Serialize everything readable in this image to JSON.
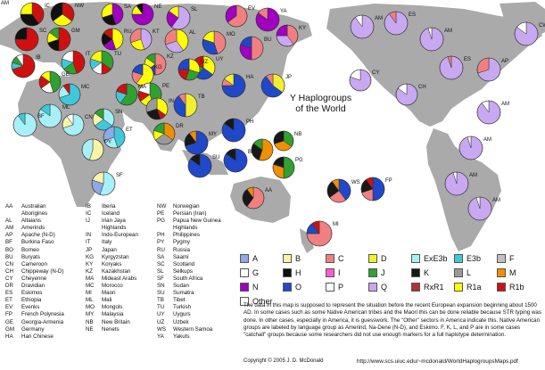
{
  "title": "Y Haplogroups\nof the World",
  "abbreviations": [
    [
      [
        "AA",
        "Australian"
      ],
      [
        "",
        "Aborigines"
      ],
      [
        "AL",
        "Altaians"
      ],
      [
        "AM",
        "Amerinds"
      ],
      [
        "AP",
        "Apache (N-D)"
      ],
      [
        "BF",
        "Burkina Faso"
      ],
      [
        "BO",
        "Borneo"
      ],
      [
        "BU",
        "Buryats"
      ],
      [
        "CN",
        "Cameroon"
      ],
      [
        "CH",
        "Chippeway (N-D)"
      ],
      [
        "CY",
        "Cheyenne"
      ],
      [
        "DR",
        "Dravidian"
      ],
      [
        "ES",
        "Eskimos"
      ],
      [
        "ET",
        "Ethiopia"
      ],
      [
        "EV",
        "Evenks"
      ],
      [
        "FP",
        "French Polynesia"
      ],
      [
        "GE",
        "Georgia-Armenia"
      ],
      [
        "GM",
        "Germany"
      ],
      [
        "HA",
        "Han Chinese"
      ]
    ],
    [
      [
        "IB",
        "Iberia"
      ],
      [
        "IC",
        "Iceland"
      ],
      [
        "IJ",
        "Irian Jaya"
      ],
      [
        "",
        "Highlands"
      ],
      [
        "IN",
        "Indo-European"
      ],
      [
        "IT",
        "Italy"
      ],
      [
        "JP",
        "Japan"
      ],
      [
        "KG",
        "Kyrgyzstan"
      ],
      [
        "KY",
        "Koryaks"
      ],
      [
        "KZ",
        "Kazakhstan"
      ],
      [
        "MA",
        "Mideast Arabs"
      ],
      [
        "MC",
        "Morocco"
      ],
      [
        "MI",
        "Maori"
      ],
      [
        "ML",
        "Mali"
      ],
      [
        "MO",
        "Mongols"
      ],
      [
        "MY",
        "Malaysia"
      ],
      [
        "NB",
        "New Britain"
      ],
      [
        "NE",
        "Nenets"
      ]
    ],
    [
      [
        "NW",
        "Norwegian"
      ],
      [
        "PE",
        "Persian (Iran)"
      ],
      [
        "PG",
        "Papua New Guinea"
      ],
      [
        "",
        "Highlands"
      ],
      [
        "PH",
        "Philippines"
      ],
      [
        "PY",
        "Pygmy"
      ],
      [
        "RU",
        "Russia"
      ],
      [
        "SA",
        "Saami"
      ],
      [
        "SC",
        "Scotland"
      ],
      [
        "SL",
        "Selkups"
      ],
      [
        "SF",
        "South Africa"
      ],
      [
        "SN",
        "Sudan"
      ],
      [
        "SU",
        "Sumatra"
      ],
      [
        "TB",
        "Tibet"
      ],
      [
        "TU",
        "Turkish"
      ],
      [
        "UY",
        "Uygurs"
      ],
      [
        "UZ",
        "Uzbek"
      ],
      [
        "WS",
        "Western Samoa"
      ],
      [
        "YA",
        "Yakuts"
      ]
    ]
  ],
  "legend": [
    {
      "label": "A",
      "color": "#8fa8e8"
    },
    {
      "label": "B",
      "color": "#f8f4a8"
    },
    {
      "label": "C",
      "color": "#f08080"
    },
    {
      "label": "D",
      "color": "#f0f030"
    },
    {
      "label": "ExE3b",
      "color": "#a8f0f8"
    },
    {
      "label": "E3b",
      "color": "#40c8d8"
    },
    {
      "label": "F",
      "color": "#c0c0c0"
    },
    {
      "label": "G",
      "color": "#ffffff"
    },
    {
      "label": "H",
      "color": "#101010"
    },
    {
      "label": "I",
      "color": "#ff5ad8"
    },
    {
      "label": "J",
      "color": "#30a030"
    },
    {
      "label": "K",
      "color": "#181818"
    },
    {
      "label": "L",
      "color": "#9a9a9a"
    },
    {
      "label": "M",
      "color": "#f09000"
    },
    {
      "label": "N",
      "color": "#a000c0"
    },
    {
      "label": "O",
      "color": "#2048c8"
    },
    {
      "label": "P",
      "color": "#ffffff"
    },
    {
      "label": "Q",
      "color": "#c8a8f0"
    },
    {
      "label": "RxR1",
      "color": "#b03040"
    },
    {
      "label": "R1a",
      "color": "#ffff00"
    },
    {
      "label": "R1b",
      "color": "#d01010"
    },
    {
      "label": "Other",
      "color": "#ffffff"
    }
  ],
  "description": "The data in this map is supposed to represent the situation before the recent European expansion beginning about 1500 AD. In some cases such as some Native American tribes and the Maori this can be done reliable because STR typing was done. In other cases, especially in America, it is guesswork. The \"Other\" sectors in America indicate this. Native American groups are labeled by language group as Amerind, Na-Dene (N-D), and Eskimo.  F, K, L, and P are in some cases \"catchall\" groups because some researchers did not use enough markers for a full haplotype determination.",
  "copyright": "Copyright © 2005 J. D. McDonald",
  "url": "http://www.scs.uiuc.edu/~mcdonald/WorldHaplogroupsMaps.pdf",
  "pies": [
    {
      "label": "IC",
      "slices": [
        [
          "#d01010",
          0.4
        ],
        [
          "#101010",
          0.35
        ],
        [
          "#ffff00",
          0.25
        ]
      ]
    },
    {
      "label": "NW",
      "slices": [
        [
          "#d01010",
          0.35
        ],
        [
          "#ffff00",
          0.3
        ],
        [
          "#101010",
          0.35
        ]
      ]
    },
    {
      "label": "SA",
      "slices": [
        [
          "#a000c0",
          0.45
        ],
        [
          "#101010",
          0.25
        ],
        [
          "#ffff00",
          0.3
        ]
      ]
    },
    {
      "label": "SC",
      "slices": [
        [
          "#d01010",
          0.75
        ],
        [
          "#101010",
          0.25
        ]
      ]
    },
    {
      "label": "GM",
      "slices": [
        [
          "#d01010",
          0.5
        ],
        [
          "#101010",
          0.2
        ],
        [
          "#ffff00",
          0.15
        ],
        [
          "#30a030",
          0.15
        ]
      ]
    },
    {
      "label": "IB",
      "slices": [
        [
          "#d01010",
          0.7
        ],
        [
          "#40c8d8",
          0.1
        ],
        [
          "#30a030",
          0.1
        ],
        [
          "#ffffff",
          0.1
        ]
      ]
    },
    {
      "label": "IT",
      "slices": [
        [
          "#d01010",
          0.45
        ],
        [
          "#30a030",
          0.2
        ],
        [
          "#40c8d8",
          0.15
        ],
        [
          "#ffffff",
          0.2
        ]
      ]
    },
    {
      "label": "TU",
      "slices": [
        [
          "#30a030",
          0.35
        ],
        [
          "#d01010",
          0.15
        ],
        [
          "#ffffff",
          0.15
        ],
        [
          "#40c8d8",
          0.15
        ],
        [
          "#ffff00",
          0.2
        ]
      ]
    },
    {
      "label": "RU",
      "slices": [
        [
          "#ffff00",
          0.45
        ],
        [
          "#a000c0",
          0.2
        ],
        [
          "#101010",
          0.2
        ],
        [
          "#d01010",
          0.15
        ]
      ]
    },
    {
      "label": "NE",
      "slices": [
        [
          "#a000c0",
          0.75
        ],
        [
          "#ffff00",
          0.15
        ],
        [
          "#101010",
          0.1
        ]
      ]
    },
    {
      "label": "SL",
      "slices": [
        [
          "#c8a8f0",
          0.6
        ],
        [
          "#a000c0",
          0.25
        ],
        [
          "#ffff00",
          0.15
        ]
      ]
    },
    {
      "label": "KT",
      "slices": [
        [
          "#c8a8f0",
          0.45
        ],
        [
          "#ffff00",
          0.25
        ],
        [
          "#f08080",
          0.3
        ]
      ]
    },
    {
      "label": "AL",
      "slices": [
        [
          "#ffff00",
          0.4
        ],
        [
          "#c8a8f0",
          0.3
        ],
        [
          "#f08080",
          0.3
        ]
      ]
    },
    {
      "label": "EV",
      "slices": [
        [
          "#f08080",
          0.65
        ],
        [
          "#a000c0",
          0.35
        ]
      ]
    },
    {
      "label": "YA",
      "slices": [
        [
          "#a000c0",
          0.85
        ],
        [
          "#f08080",
          0.15
        ]
      ]
    },
    {
      "label": "KY",
      "slices": [
        [
          "#f08080",
          0.4
        ],
        [
          "#c8a8f0",
          0.35
        ],
        [
          "#a000c0",
          0.25
        ]
      ]
    },
    {
      "label": "BU",
      "slices": [
        [
          "#f08080",
          0.5
        ],
        [
          "#a000c0",
          0.3
        ],
        [
          "#2048c8",
          0.2
        ]
      ]
    },
    {
      "label": "MO",
      "slices": [
        [
          "#f08080",
          0.45
        ],
        [
          "#2048c8",
          0.35
        ],
        [
          "#ffff00",
          0.2
        ]
      ]
    },
    {
      "label": "KZ",
      "slices": [
        [
          "#f08080",
          0.5
        ],
        [
          "#2048c8",
          0.15
        ],
        [
          "#ffff00",
          0.2
        ],
        [
          "#30a030",
          0.15
        ]
      ]
    },
    {
      "label": "KG",
      "slices": [
        [
          "#ffff00",
          0.6
        ],
        [
          "#f08080",
          0.2
        ],
        [
          "#2048c8",
          0.2
        ]
      ]
    },
    {
      "label": "UY",
      "slices": [
        [
          "#ffff00",
          0.35
        ],
        [
          "#2048c8",
          0.25
        ],
        [
          "#30a030",
          0.2
        ],
        [
          "#d01010",
          0.2
        ]
      ]
    },
    {
      "label": "UZ",
      "slices": [
        [
          "#ffff00",
          0.3
        ],
        [
          "#30a030",
          0.25
        ],
        [
          "#d01010",
          0.2
        ],
        [
          "#2048c8",
          0.25
        ]
      ]
    },
    {
      "label": "GE",
      "slices": [
        [
          "#30a030",
          0.45
        ],
        [
          "#ffffff",
          0.2
        ],
        [
          "#d01010",
          0.2
        ],
        [
          "#ffff00",
          0.15
        ]
      ]
    },
    {
      "label": "PE",
      "slices": [
        [
          "#30a030",
          0.45
        ],
        [
          "#ffff00",
          0.2
        ],
        [
          "#d01010",
          0.15
        ],
        [
          "#ffffff",
          0.2
        ]
      ]
    },
    {
      "label": "MA",
      "slices": [
        [
          "#30a030",
          0.6
        ],
        [
          "#40c8d8",
          0.2
        ],
        [
          "#d01010",
          0.2
        ]
      ]
    },
    {
      "label": "IN",
      "slices": [
        [
          "#ffff00",
          0.35
        ],
        [
          "#d01010",
          0.1
        ],
        [
          "#181818",
          0.25
        ],
        [
          "#9a9a9a",
          0.3
        ]
      ]
    },
    {
      "label": "TB",
      "slices": [
        [
          "#f0f030",
          0.5
        ],
        [
          "#2048c8",
          0.4
        ],
        [
          "#f08080",
          0.1
        ]
      ]
    },
    {
      "label": "HA",
      "slices": [
        [
          "#2048c8",
          0.75
        ],
        [
          "#f08080",
          0.1
        ],
        [
          "#f0f030",
          0.15
        ]
      ]
    },
    {
      "label": "JP",
      "slices": [
        [
          "#f0f030",
          0.35
        ],
        [
          "#2048c8",
          0.55
        ],
        [
          "#f08080",
          0.1
        ]
      ]
    },
    {
      "label": "DR",
      "slices": [
        [
          "#f09000",
          0.35
        ],
        [
          "#9a9a9a",
          0.3
        ],
        [
          "#ffff00",
          0.15
        ],
        [
          "#30a030",
          0.2
        ]
      ]
    },
    {
      "label": "MY",
      "slices": [
        [
          "#2048c8",
          0.7
        ],
        [
          "#181818",
          0.2
        ],
        [
          "#f09000",
          0.1
        ]
      ]
    },
    {
      "label": "PH",
      "slices": [
        [
          "#2048c8",
          0.85
        ],
        [
          "#181818",
          0.15
        ]
      ]
    },
    {
      "label": "BO",
      "slices": [
        [
          "#2048c8",
          0.85
        ],
        [
          "#181818",
          0.15
        ]
      ]
    },
    {
      "label": "SU",
      "slices": [
        [
          "#2048c8",
          0.85
        ],
        [
          "#181818",
          0.15
        ]
      ]
    },
    {
      "label": "IJ",
      "slices": [
        [
          "#f09000",
          0.55
        ],
        [
          "#181818",
          0.3
        ],
        [
          "#30a030",
          0.15
        ]
      ]
    },
    {
      "label": "NB",
      "slices": [
        [
          "#30a030",
          0.35
        ],
        [
          "#f09000",
          0.35
        ],
        [
          "#181818",
          0.3
        ]
      ]
    },
    {
      "label": "PG",
      "slices": [
        [
          "#30a030",
          0.5
        ],
        [
          "#f09000",
          0.3
        ],
        [
          "#181818",
          0.2
        ]
      ]
    },
    {
      "label": "AA",
      "slices": [
        [
          "#f08080",
          0.6
        ],
        [
          "#181818",
          0.3
        ],
        [
          "#f09000",
          0.1
        ]
      ]
    },
    {
      "label": "WS",
      "slices": [
        [
          "#2048c8",
          0.4
        ],
        [
          "#f08080",
          0.25
        ],
        [
          "#181818",
          0.25
        ],
        [
          "#f09000",
          0.1
        ]
      ]
    },
    {
      "label": "FP",
      "slices": [
        [
          "#2048c8",
          0.5
        ],
        [
          "#f08080",
          0.2
        ],
        [
          "#181818",
          0.2
        ],
        [
          "#d01010",
          0.1
        ]
      ]
    },
    {
      "label": "MI",
      "slices": [
        [
          "#f08080",
          0.75
        ],
        [
          "#2048c8",
          0.15
        ],
        [
          "#d01010",
          0.1
        ]
      ]
    },
    {
      "label": "MC",
      "slices": [
        [
          "#40c8d8",
          0.7
        ],
        [
          "#a8f0f8",
          0.2
        ],
        [
          "#d01010",
          0.1
        ]
      ]
    },
    {
      "label": "ML",
      "slices": [
        [
          "#a8f0f8",
          0.85
        ],
        [
          "#40c8d8",
          0.15
        ]
      ]
    },
    {
      "label": "BF",
      "slices": [
        [
          "#a8f0f8",
          0.9
        ],
        [
          "#40c8d8",
          0.1
        ]
      ]
    },
    {
      "label": "SN",
      "slices": [
        [
          "#a8f0f8",
          0.35
        ],
        [
          "#40c8d8",
          0.3
        ],
        [
          "#f8f4a8",
          0.2
        ],
        [
          "#30a030",
          0.15
        ]
      ]
    },
    {
      "label": "CN",
      "slices": [
        [
          "#a8f0f8",
          0.7
        ],
        [
          "#f8f4a8",
          0.2
        ],
        [
          "#ffffff",
          0.1
        ]
      ]
    },
    {
      "label": "ET",
      "slices": [
        [
          "#40c8d8",
          0.45
        ],
        [
          "#a8f0f8",
          0.25
        ],
        [
          "#8fa8e8",
          0.3
        ]
      ]
    },
    {
      "label": "PY",
      "slices": [
        [
          "#f8f4a8",
          0.55
        ],
        [
          "#a8f0f8",
          0.45
        ]
      ]
    },
    {
      "label": "SF",
      "slices": [
        [
          "#a8f0f8",
          0.55
        ],
        [
          "#8fa8e8",
          0.25
        ],
        [
          "#f8f4a8",
          0.2
        ]
      ]
    },
    {
      "label": "AM",
      "slices": [
        [
          "#c8a8f0",
          0.9
        ],
        [
          "#ffffff",
          0.1
        ]
      ]
    },
    {
      "label": "ES",
      "slices": [
        [
          "#c8a8f0",
          0.9
        ],
        [
          "#f08080",
          0.1
        ]
      ]
    },
    {
      "label": "AM",
      "slices": [
        [
          "#c8a8f0",
          0.95
        ],
        [
          "#ffffff",
          0.05
        ]
      ]
    },
    {
      "label": "CW",
      "slices": [
        [
          "#c8a8f0",
          0.85
        ],
        [
          "#ffffff",
          0.15
        ]
      ]
    },
    {
      "label": "ES",
      "slices": [
        [
          "#c8a8f0",
          0.95
        ],
        [
          "#f08080",
          0.05
        ]
      ]
    },
    {
      "label": "AP",
      "slices": [
        [
          "#c8a8f0",
          0.7
        ],
        [
          "#f08080",
          0.3
        ]
      ]
    },
    {
      "label": "CY",
      "slices": [
        [
          "#c8a8f0",
          0.8
        ],
        [
          "#ffffff",
          0.2
        ]
      ]
    },
    {
      "label": "CH",
      "slices": [
        [
          "#c8a8f0",
          0.85
        ],
        [
          "#ffffff",
          0.15
        ]
      ]
    },
    {
      "label": "AM",
      "slices": [
        [
          "#c8a8f0",
          0.9
        ],
        [
          "#ffffff",
          0.1
        ]
      ]
    },
    {
      "label": "AM",
      "slices": [
        [
          "#c8a8f0",
          0.95
        ],
        [
          "#ffffff",
          0.05
        ]
      ]
    },
    {
      "label": "AM",
      "slices": [
        [
          "#c8a8f0",
          0.95
        ],
        [
          "#ffffff",
          0.05
        ]
      ]
    },
    {
      "label": "AM",
      "slices": [
        [
          "#c8a8f0",
          0.95
        ],
        [
          "#ffffff",
          0.05
        ]
      ]
    },
    {
      "label": "AM",
      "slices": [
        [
          "#c8a8f0",
          0.95
        ],
        [
          "#ffffff",
          0.05
        ]
      ]
    }
  ]
}
